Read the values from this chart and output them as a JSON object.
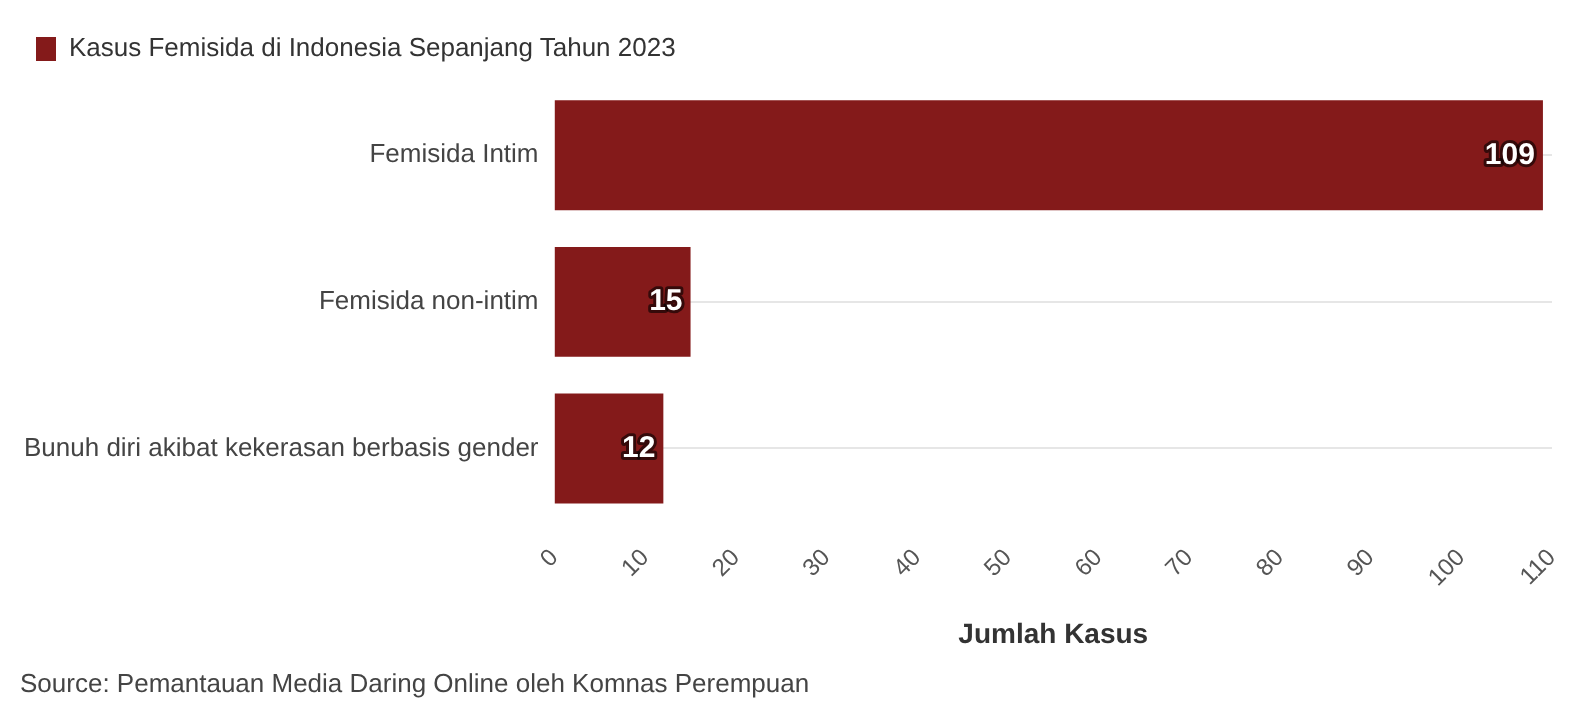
{
  "chart_data": {
    "type": "bar",
    "orientation": "horizontal",
    "categories": [
      "Femisida Intim",
      "Femisida non-intim",
      "Bunuh diri akibat kekerasan berbasis gender"
    ],
    "series": [
      {
        "name": "Kasus Femisida di Indonesia Sepanjang Tahun 2023",
        "color": "#841a1a",
        "values": [
          109,
          15,
          12
        ]
      }
    ],
    "xlim": [
      0,
      110
    ],
    "xticks": [
      0,
      10,
      20,
      30,
      40,
      50,
      60,
      70,
      80,
      90,
      100,
      110
    ],
    "xlabel": "Jumlah Kasus",
    "grid": "y",
    "legend": "top left",
    "data_labels": true,
    "annotations": [
      "Source: Pemantauan Media Daring Online oleh Komnas Perempuan"
    ]
  }
}
